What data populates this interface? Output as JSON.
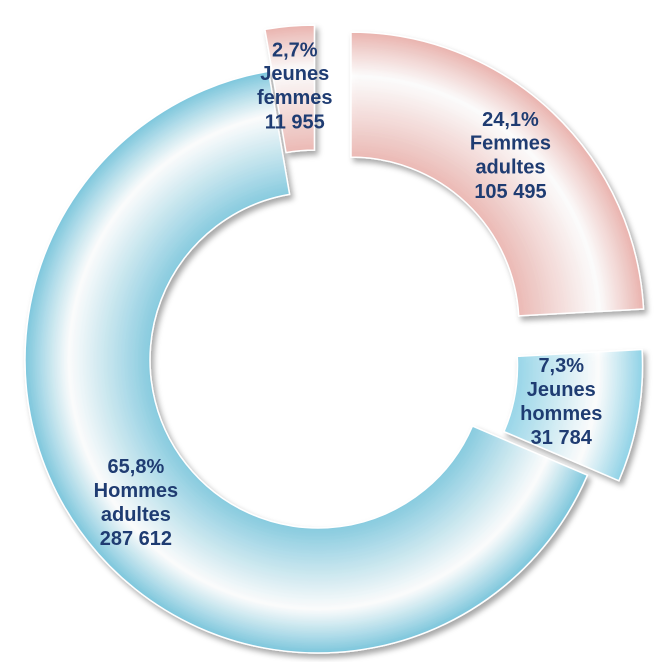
{
  "chart_data": {
    "type": "donut",
    "categories": [
      "Femmes adultes",
      "Jeunes hommes",
      "Hommes adultes",
      "Jeunes femmes"
    ],
    "values": [
      24.1,
      7.3,
      65.8,
      2.7
    ],
    "value_labels": [
      "24,1%",
      "7,3%",
      "65,8%",
      "2,7%"
    ],
    "counts": [
      105495,
      31784,
      287612,
      11955
    ],
    "count_labels": [
      "105 495",
      "31 784",
      "287 612",
      "11 955"
    ],
    "colors": [
      "#e9b3ae",
      "#8fd2e6",
      "#7cc6dc",
      "#e9b3ae"
    ]
  }
}
